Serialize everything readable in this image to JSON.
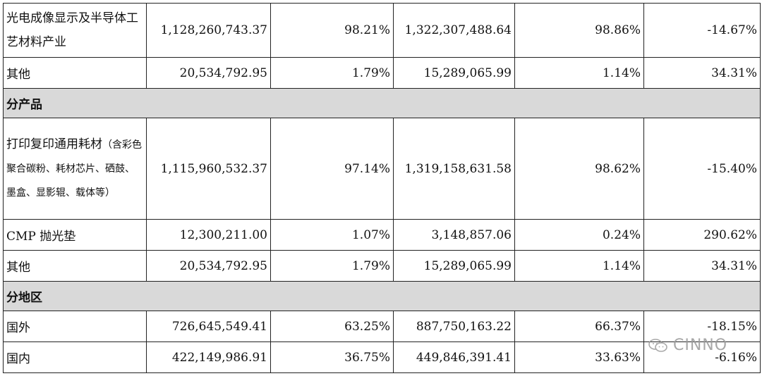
{
  "rows": [
    {
      "type": "data",
      "label": "光电成像显示及半导体工艺材料产业",
      "c1": "1,128,260,743.37",
      "c2": "98.21%",
      "c3": "1,322,307,488.64",
      "c4": "98.86%",
      "c5": "-14.67%"
    },
    {
      "type": "data",
      "label": "其他",
      "c1": "20,534,792.95",
      "c2": "1.79%",
      "c3": "15,289,065.99",
      "c4": "1.14%",
      "c5": "34.31%"
    },
    {
      "type": "section",
      "label": "分产品"
    },
    {
      "type": "data",
      "label": "打印复印通用耗材",
      "sub": "（含彩色聚合碳粉、耗材芯片、硒鼓、墨盒、显影辊、载体等）",
      "c1": "1,115,960,532.37",
      "c2": "97.14%",
      "c3": "1,319,158,631.58",
      "c4": "98.62%",
      "c5": "-15.40%"
    },
    {
      "type": "data",
      "label": "CMP 抛光垫",
      "c1": "12,300,211.00",
      "c2": "1.07%",
      "c3": "3,148,857.06",
      "c4": "0.24%",
      "c5": "290.62%"
    },
    {
      "type": "data",
      "label": "其他",
      "c1": "20,534,792.95",
      "c2": "1.79%",
      "c3": "15,289,065.99",
      "c4": "1.14%",
      "c5": "34.31%"
    },
    {
      "type": "section",
      "label": "分地区"
    },
    {
      "type": "data",
      "label": "国外",
      "c1": "726,645,549.41",
      "c2": "63.25%",
      "c3": "887,750,163.22",
      "c4": "66.37%",
      "c5": "-18.15%"
    },
    {
      "type": "data",
      "label": "国内",
      "c1": "422,149,986.91",
      "c2": "36.75%",
      "c3": "449,846,391.41",
      "c4": "33.63%",
      "c5": "-6.16%"
    }
  ],
  "watermark": {
    "text": "CINNO",
    "icon": "wechat-icon"
  }
}
